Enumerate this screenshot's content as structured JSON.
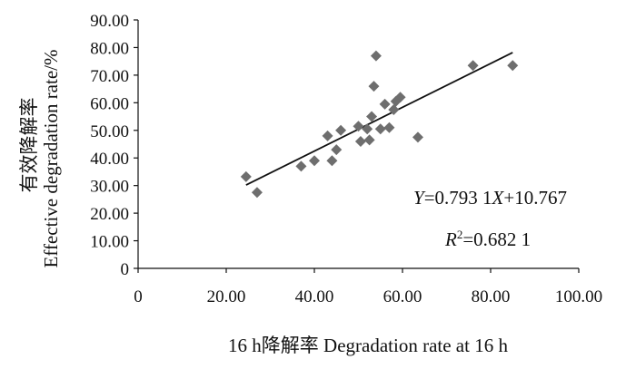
{
  "chart_data": {
    "type": "scatter",
    "xlabel": "16 h降解率  Degradation rate at 16 h",
    "ylabel_cn": "有效降解率",
    "ylabel_en": "Effective degradation rate/%",
    "xlim": [
      0,
      100
    ],
    "ylim": [
      0,
      90
    ],
    "xticks": [
      "0",
      "20.00",
      "40.00",
      "60.00",
      "80.00",
      "100.00"
    ],
    "yticks": [
      "0",
      "10.00",
      "20.00",
      "30.00",
      "40.00",
      "50.00",
      "60.00",
      "70.00",
      "80.00",
      "90.00"
    ],
    "grid": false,
    "marker": "diamond",
    "marker_color": "#6e6e6e",
    "line_color": "#111111",
    "points": [
      {
        "x": 24.5,
        "y": 33.2
      },
      {
        "x": 27.0,
        "y": 27.5
      },
      {
        "x": 37.0,
        "y": 37.0
      },
      {
        "x": 40.0,
        "y": 39.0
      },
      {
        "x": 43.0,
        "y": 48.0
      },
      {
        "x": 44.0,
        "y": 39.0
      },
      {
        "x": 45.0,
        "y": 43.0
      },
      {
        "x": 46.0,
        "y": 50.0
      },
      {
        "x": 50.0,
        "y": 51.5
      },
      {
        "x": 50.5,
        "y": 46.0
      },
      {
        "x": 52.0,
        "y": 50.5
      },
      {
        "x": 52.5,
        "y": 46.5
      },
      {
        "x": 53.0,
        "y": 55.0
      },
      {
        "x": 53.5,
        "y": 66.0
      },
      {
        "x": 54.0,
        "y": 77.0
      },
      {
        "x": 55.0,
        "y": 50.5
      },
      {
        "x": 56.0,
        "y": 59.5
      },
      {
        "x": 57.0,
        "y": 51.0
      },
      {
        "x": 58.0,
        "y": 57.5
      },
      {
        "x": 58.5,
        "y": 60.5
      },
      {
        "x": 59.5,
        "y": 62.0
      },
      {
        "x": 63.5,
        "y": 47.5
      },
      {
        "x": 76.0,
        "y": 73.5
      },
      {
        "x": 85.0,
        "y": 73.5
      }
    ],
    "trendline": {
      "slope": 0.7931,
      "intercept": 10.767,
      "x_from": 24.5,
      "x_to": 85.0
    },
    "annotations": {
      "equation": {
        "y_var": "Y",
        "eq_body": "=0.793 1",
        "x_var": "X",
        "eq_tail": "+10.767"
      },
      "r2": {
        "r_var": "R",
        "sup": "2",
        "value": "=0.682 1"
      }
    }
  }
}
